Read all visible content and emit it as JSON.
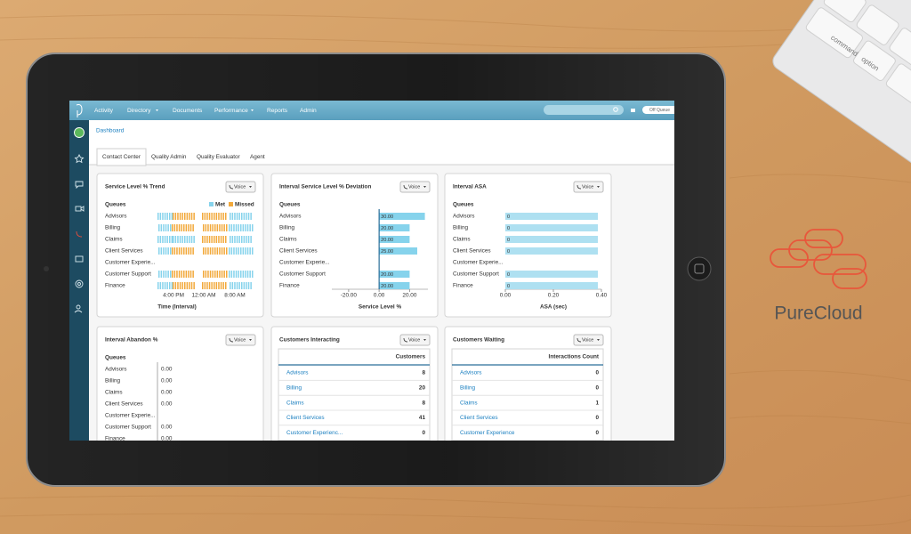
{
  "brand": "PureCloud",
  "keyboard_keys": [
    "command",
    "option"
  ],
  "nav": {
    "items": [
      "Activity",
      "Directory",
      "Documents",
      "Performance",
      "Reports",
      "Admin"
    ],
    "status_toggle": "Off Queue"
  },
  "breadcrumb": "Dashboard",
  "tabs": [
    "Contact Center",
    "Quality Admin",
    "Quality Evaluator",
    "Agent"
  ],
  "widgets": [
    {
      "type": "trend",
      "title": "Service Level % Trend",
      "media": "Voice",
      "rows_header": "Queues",
      "rows": [
        "Advisors",
        "Billing",
        "Claims",
        "Client Services",
        "Customer Experie...",
        "Customer Support",
        "Finance"
      ],
      "legend": [
        {
          "name": "Met",
          "color": "#86d3ec"
        },
        {
          "name": "Missed",
          "color": "#f2a93b"
        }
      ],
      "x_ticks": [
        "4:00 PM",
        "12:00 AM",
        "8:00 AM"
      ],
      "x_label": "Time (Interval)"
    },
    {
      "type": "bar",
      "title": "Interval Service Level % Deviation",
      "media": "Voice",
      "rows_header": "Queues",
      "rows": [
        "Advisors",
        "Billing",
        "Claims",
        "Client Services",
        "Customer Experie...",
        "Customer Support",
        "Finance"
      ],
      "values": [
        30,
        20,
        20,
        25,
        null,
        20,
        20
      ],
      "value_labels": [
        "30.00",
        "20.00",
        "20.00",
        "25.00",
        null,
        "20.00",
        "20.00"
      ],
      "color": "#86d3ec",
      "xlim": [
        -31,
        32
      ],
      "xticks": [
        {
          "value": -20,
          "label": "-20.00"
        },
        {
          "value": 0,
          "label": "0.00"
        },
        {
          "value": 20,
          "label": "20.00"
        }
      ],
      "x_label": "Service Level %"
    },
    {
      "type": "bar",
      "title": "Interval ASA",
      "media": "Voice",
      "rows_header": "Queues",
      "rows": [
        "Advisors",
        "Billing",
        "Claims",
        "Client Services",
        "Customer Experie...",
        "Customer Support",
        "Finance"
      ],
      "values": [
        0,
        0,
        0,
        0,
        null,
        0,
        0
      ],
      "color": "#86d3ec",
      "xlim": [
        0,
        0.4
      ],
      "xticks": [
        {
          "value": 0,
          "label": "0.00"
        },
        {
          "value": 0.2,
          "label": "0.20"
        },
        {
          "value": 0.4,
          "label": "0.40"
        }
      ],
      "x_label": "ASA (sec)"
    },
    {
      "type": "list",
      "title": "Interval Abandon %",
      "media": "Voice",
      "rows_header": "Queues",
      "rows": [
        "Advisors",
        "Billing",
        "Claims",
        "Client Services",
        "Customer Experie...",
        "Customer Support",
        "Finance"
      ],
      "cells": [
        "0.00",
        "0.00",
        "0.00",
        "0.00",
        null,
        "0.00",
        "0.00"
      ]
    },
    {
      "type": "table",
      "title": "Customers Interacting",
      "media": "Voice",
      "column": "Customers",
      "rows": [
        [
          "Advisors",
          8
        ],
        [
          "Billing",
          20
        ],
        [
          "Claims",
          8
        ],
        [
          "Client Services",
          41
        ],
        [
          "Customer Experienc...",
          0
        ]
      ]
    },
    {
      "type": "table",
      "title": "Customers Waiting",
      "media": "Voice",
      "column": "Interactions Count",
      "rows": [
        [
          "Advisors",
          0
        ],
        [
          "Billing",
          0
        ],
        [
          "Claims",
          1
        ],
        [
          "Client Services",
          0
        ],
        [
          "Customer Experience",
          0
        ]
      ]
    }
  ]
}
